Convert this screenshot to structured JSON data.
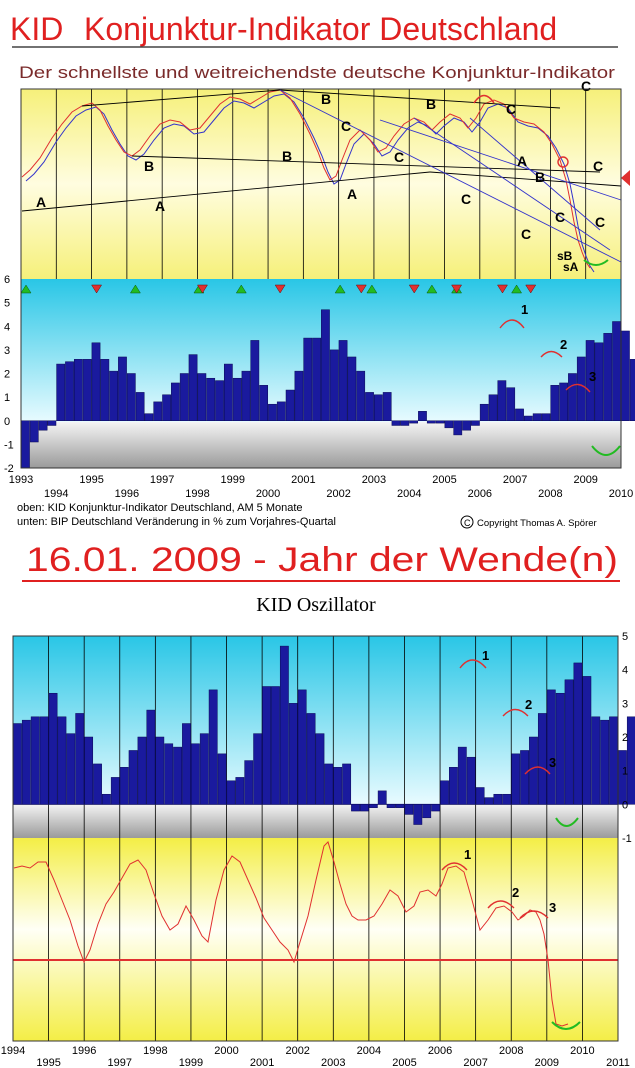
{
  "header": {
    "title_k": "KID",
    "title_rest": "Konjunktur-Indikator Deutschland",
    "subtitle": "Der schnellste und weitreichendste deutsche Konjunktur-Indikator"
  },
  "legend": {
    "line1": "oben: KID Konjunktur-Indikator Deutschland, AM 5 Monate",
    "line2": "unten: BIP Deutschland Veränderung in % zum Vorjahres-Quartal",
    "copyright": "Copyright Thomas A. Spörer"
  },
  "headline": "16.01. 2009 - Jahr der Wende(n)",
  "oscillator_title": "KID Oszillator",
  "colors": {
    "title_red": "#e02020",
    "subtitle_brown": "#7a2a2a",
    "bar": "#1a1a9e",
    "bar_edge": "#0a0a55",
    "line_red": "#e03030",
    "line_blue": "#3333cc",
    "green": "#22bb22",
    "cyan": "#29c6e6",
    "yellow": "#f4ee46"
  },
  "chart_data": [
    {
      "type": "line",
      "name": "kid-indicator-top",
      "annotations": [
        "A",
        "A",
        "A",
        "A",
        "B",
        "B",
        "B",
        "B",
        "B",
        "C",
        "C",
        "C",
        "C",
        "C",
        "C",
        "C",
        "C",
        "C",
        "sB",
        "sA"
      ],
      "x_tick_labels_top": [
        "1993",
        "1995",
        "1997",
        "1999",
        "2001",
        "2003",
        "2005",
        "2007",
        "2009"
      ],
      "x_tick_labels_bottom": [
        "1994",
        "1996",
        "1998",
        "2000",
        "2002",
        "2004",
        "2006",
        "2008",
        "2010"
      ]
    },
    {
      "type": "bar",
      "name": "bip-change",
      "ylim": [
        -2,
        6
      ],
      "y_ticks": [
        "6",
        "5",
        "4",
        "3",
        "2",
        "1",
        "0",
        "-1",
        "-2"
      ],
      "xlim": [
        1993.0,
        2010.0
      ],
      "start": 1993.0,
      "step": 0.25,
      "values": [
        -2.0,
        -0.9,
        -0.4,
        -0.2,
        2.4,
        2.5,
        2.6,
        2.6,
        3.3,
        2.6,
        2.1,
        2.7,
        2.0,
        1.2,
        0.3,
        0.8,
        1.1,
        1.6,
        2.0,
        2.8,
        2.0,
        1.8,
        1.7,
        2.4,
        1.8,
        2.1,
        3.4,
        1.5,
        0.7,
        0.8,
        1.3,
        2.1,
        3.5,
        3.5,
        4.7,
        3.0,
        3.4,
        2.7,
        2.1,
        1.2,
        1.1,
        1.2,
        -0.2,
        -0.2,
        -0.1,
        0.4,
        -0.1,
        -0.1,
        -0.3,
        -0.6,
        -0.4,
        -0.2,
        0.7,
        1.1,
        1.7,
        1.4,
        0.5,
        0.2,
        0.3,
        0.3,
        1.5,
        1.6,
        2.0,
        2.7,
        3.4,
        3.3,
        3.7,
        4.2,
        3.8,
        2.6,
        2.5,
        2.6,
        1.6,
        2.6,
        2.7,
        1.9,
        0.8,
        -0.1,
        -0.1
      ],
      "triangles_up": [
        1993.0,
        1996.1,
        1997.9,
        1999.1,
        2001.9,
        2002.8,
        2004.5,
        2005.2,
        2006.9
      ],
      "triangles_down": [
        1995.0,
        1998.0,
        2000.2,
        2002.5,
        2004.0,
        2005.2,
        2006.5,
        2007.3
      ],
      "annotations": [
        "1",
        "2",
        "3"
      ]
    },
    {
      "type": "bar",
      "name": "kid-oscillator-bars",
      "ylim": [
        -1,
        5
      ],
      "y_ticks": [
        "5",
        "4",
        "3",
        "2",
        "1",
        "0",
        "-1"
      ],
      "xlim": [
        1994.0,
        2011.0
      ],
      "start": 1994.0,
      "step": 0.25,
      "values": [
        2.4,
        2.5,
        2.6,
        2.6,
        3.3,
        2.6,
        2.1,
        2.7,
        2.0,
        1.2,
        0.3,
        0.8,
        1.1,
        1.6,
        2.0,
        2.8,
        2.0,
        1.8,
        1.7,
        2.4,
        1.8,
        2.1,
        3.4,
        1.5,
        0.7,
        0.8,
        1.3,
        2.1,
        3.5,
        3.5,
        4.7,
        3.0,
        3.4,
        2.7,
        2.1,
        1.2,
        1.1,
        1.2,
        -0.2,
        -0.2,
        -0.1,
        0.4,
        -0.1,
        -0.1,
        -0.3,
        -0.6,
        -0.4,
        -0.2,
        0.7,
        1.1,
        1.7,
        1.4,
        0.5,
        0.2,
        0.3,
        0.3,
        1.5,
        1.6,
        2.0,
        2.7,
        3.4,
        3.3,
        3.7,
        4.2,
        3.8,
        2.6,
        2.5,
        2.6,
        1.6,
        2.6,
        2.7,
        1.9,
        0.8,
        -0.1,
        -0.1
      ],
      "annotations": [
        "1",
        "2",
        "3"
      ]
    },
    {
      "type": "line",
      "name": "kid-oscillator-line",
      "annotations": [
        "1",
        "2",
        "3"
      ],
      "x_tick_labels_top": [
        "1994",
        "1996",
        "1998",
        "2000",
        "2002",
        "2004",
        "2006",
        "2008",
        "2010"
      ],
      "x_tick_labels_bottom": [
        "1995",
        "1997",
        "1999",
        "2001",
        "2003",
        "2005",
        "2007",
        "2009",
        "2011"
      ]
    }
  ]
}
